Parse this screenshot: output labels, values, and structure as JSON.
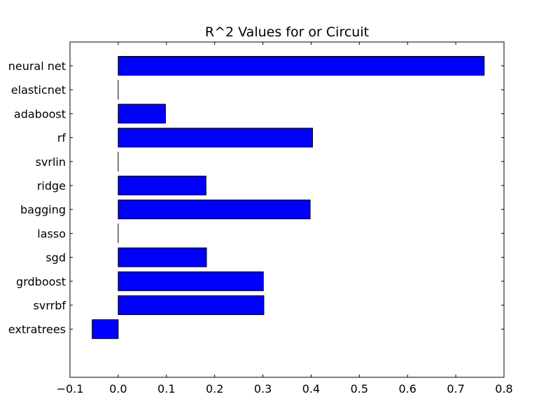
{
  "chart_data": {
    "type": "bar",
    "orientation": "horizontal",
    "title": "R^2 Values for or Circuit",
    "xlabel": "",
    "ylabel": "",
    "xlim": [
      -0.1,
      0.8
    ],
    "xticks": [
      -0.1,
      0.0,
      0.1,
      0.2,
      0.3,
      0.4,
      0.5,
      0.6,
      0.7,
      0.8
    ],
    "xtick_labels": [
      "−0.1",
      "0.0",
      "0.1",
      "0.2",
      "0.3",
      "0.4",
      "0.5",
      "0.6",
      "0.7",
      "0.8"
    ],
    "categories": [
      "neural net",
      "elasticnet",
      "adaboost",
      "rf",
      "svrlin",
      "ridge",
      "bagging",
      "lasso",
      "sgd",
      "grdboost",
      "svrrbf",
      "extratrees"
    ],
    "values": [
      0.759,
      0.0,
      0.098,
      0.403,
      0.0,
      0.182,
      0.398,
      0.0,
      0.183,
      0.301,
      0.302,
      -0.054
    ],
    "bar_color": "#0000ff",
    "edge_color": "#000000",
    "grid": false,
    "legend": "none"
  }
}
